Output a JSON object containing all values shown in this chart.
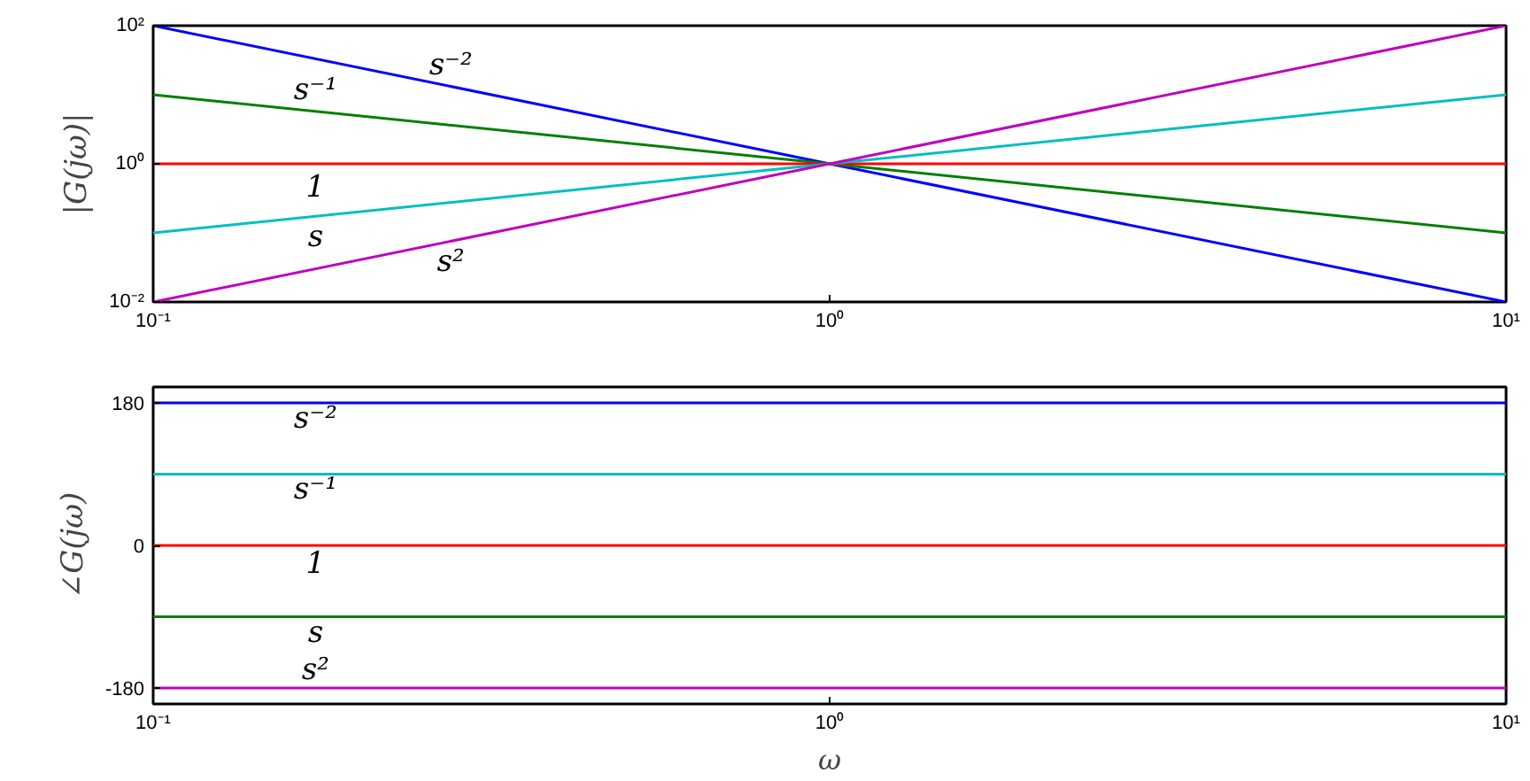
{
  "chart_data": [
    {
      "type": "line",
      "ylabel": "|G(jω)|",
      "log": "xy",
      "x": [
        0.1,
        1,
        10
      ],
      "xlim": [
        0.1,
        10
      ],
      "ylim": [
        0.01,
        100
      ],
      "xticks": [
        {
          "value": 0.1,
          "label": "10⁻¹"
        },
        {
          "value": 1,
          "label": "10⁰"
        },
        {
          "value": 10,
          "label": "10¹"
        }
      ],
      "yticks": [
        {
          "value": 0.01,
          "label": "10⁻²"
        },
        {
          "value": 1,
          "label": "10⁰"
        },
        {
          "value": 100,
          "label": "10²"
        }
      ],
      "series": [
        {
          "name": "s⁻²",
          "color": "#0000ff",
          "values": [
            100,
            1,
            0.01
          ]
        },
        {
          "name": "s⁻¹",
          "color": "#008000",
          "values": [
            10,
            1,
            0.1
          ]
        },
        {
          "name": "1",
          "color": "#ff0000",
          "values": [
            1,
            1,
            1
          ]
        },
        {
          "name": "s",
          "color": "#00bfbf",
          "values": [
            0.1,
            1,
            10
          ]
        },
        {
          "name": "s²",
          "color": "#bf00bf",
          "values": [
            0.01,
            1,
            100
          ]
        }
      ]
    },
    {
      "type": "line",
      "ylabel": "∠G(jω)",
      "xlabel": "ω",
      "log": "x",
      "x": [
        0.1,
        1,
        10
      ],
      "xlim": [
        0.1,
        10
      ],
      "ylim": [
        -200,
        200
      ],
      "xticks": [
        {
          "value": 0.1,
          "label": "10⁻¹"
        },
        {
          "value": 1,
          "label": "10⁰"
        },
        {
          "value": 10,
          "label": "10¹"
        }
      ],
      "yticks": [
        -180,
        0,
        180
      ],
      "series": [
        {
          "name": "s⁻²",
          "color": "#0000ff",
          "values": [
            180,
            180,
            180
          ]
        },
        {
          "name": "s⁻¹",
          "color": "#00bfbf",
          "values": [
            90,
            90,
            90
          ]
        },
        {
          "name": "1",
          "color": "#ff0000",
          "values": [
            0,
            0,
            0
          ]
        },
        {
          "name": "s",
          "color": "#008000",
          "values": [
            -90,
            -90,
            -90
          ]
        },
        {
          "name": "s²",
          "color": "#bf00bf",
          "values": [
            -180,
            -180,
            -180
          ]
        }
      ]
    }
  ]
}
